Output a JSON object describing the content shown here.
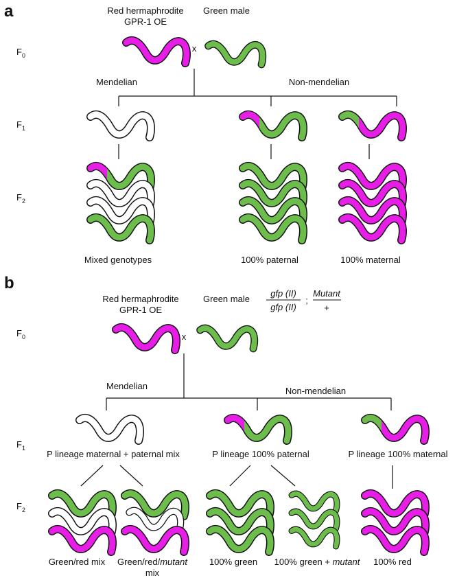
{
  "panel_a": {
    "label": "a",
    "generations": [
      {
        "letter": "F",
        "sub": "0"
      },
      {
        "letter": "F",
        "sub": "1"
      },
      {
        "letter": "F",
        "sub": "2"
      }
    ],
    "female": [
      "Red hermaphrodite",
      "GPR-1 OE"
    ],
    "male": "Green male",
    "cross": "x",
    "branches": [
      "Mendelian",
      "Non-mendelian"
    ],
    "f2_captions": [
      "Mixed genotypes",
      "100% paternal",
      "100% maternal"
    ]
  },
  "panel_b": {
    "label": "b",
    "generations": [
      {
        "letter": "F",
        "sub": "0"
      },
      {
        "letter": "F",
        "sub": "1"
      },
      {
        "letter": "F",
        "sub": "2"
      }
    ],
    "female": [
      "Red hermaphrodite",
      "GPR-1 OE"
    ],
    "male": "Green male",
    "male_genotype": {
      "left": {
        "numerator": "gfp (II)",
        "denominator": "gfp (II)"
      },
      "separator": ";",
      "right": {
        "numerator": "Mutant",
        "denominator": "+"
      }
    },
    "cross": "x",
    "branches": [
      "Mendelian",
      "Non-mendelian"
    ],
    "f1_captions": [
      "P lineage maternal + paternal mix",
      "P lineage 100% paternal",
      "P lineage 100% maternal"
    ],
    "f2_captions": [
      [
        "Green/red mix"
      ],
      [
        "Green/red/",
        "mutant",
        "mix"
      ],
      [
        "100% green"
      ],
      [
        "100% green + ",
        "mutant"
      ],
      [
        "100% red"
      ]
    ]
  }
}
